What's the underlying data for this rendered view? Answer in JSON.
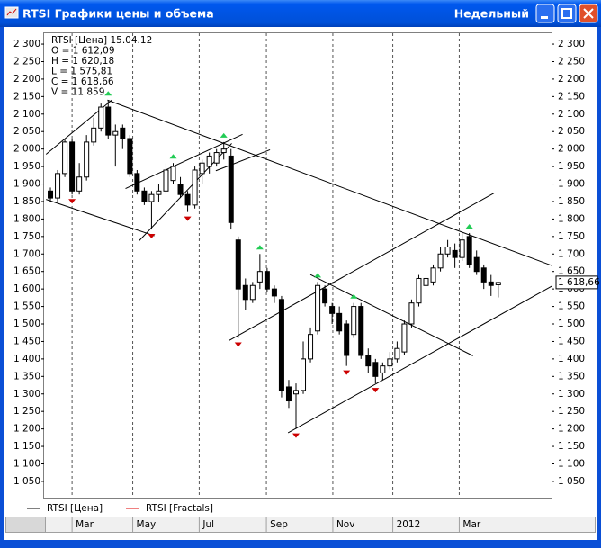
{
  "window": {
    "title": "RTSI Графики цены и объема",
    "period": "Недельный"
  },
  "chart_data": {
    "type": "candlestick",
    "info": [
      "RTSI [Цена] 15.04.12",
      "O = 1 612,09",
      "H = 1 620,18",
      "L = 1 575,81",
      "C = 1 618,66",
      "V = 11 859"
    ],
    "x": [
      0,
      1,
      2,
      3,
      4,
      5,
      6,
      7,
      8,
      9,
      10,
      11,
      12,
      13,
      14,
      15,
      16,
      17,
      18,
      19,
      20,
      21,
      22,
      23,
      24,
      25,
      26,
      27,
      28,
      29,
      30,
      31,
      32,
      33,
      34,
      35,
      36,
      37,
      38,
      39,
      40,
      41,
      42,
      43,
      44,
      45,
      46,
      47,
      48,
      49,
      50,
      51,
      52,
      53,
      54,
      55,
      56,
      57,
      58,
      59,
      60,
      61,
      62
    ],
    "series": [
      {
        "name": "RTSI [Цена]",
        "color": "#000000",
        "up_fill": "#ffffff",
        "down_fill": "#000000",
        "open": [
          1880,
          1860,
          1930,
          2020,
          1880,
          1920,
          2020,
          2060,
          2120,
          2040,
          2060,
          2030,
          1930,
          1880,
          1850,
          1870,
          1880,
          1910,
          1900,
          1870,
          1840,
          1930,
          1950,
          1960,
          1990,
          1980,
          1740,
          1610,
          1570,
          1620,
          1650,
          1600,
          1570,
          1320,
          1300,
          1310,
          1400,
          1480,
          1600,
          1550,
          1530,
          1500,
          1470,
          1550,
          1410,
          1390,
          1360,
          1380,
          1400,
          1420,
          1500,
          1560,
          1610,
          1620,
          1660,
          1700,
          1710,
          1690,
          1750,
          1690,
          1660,
          1620,
          1612.09
        ],
        "high": [
          1890,
          1940,
          2030,
          2030,
          1960,
          2040,
          2090,
          2130,
          2140,
          2070,
          2070,
          2040,
          1940,
          1890,
          1880,
          1900,
          1960,
          1960,
          1920,
          1880,
          1950,
          1970,
          1990,
          2000,
          2020,
          2000,
          1750,
          1630,
          1620,
          1700,
          1660,
          1610,
          1580,
          1340,
          1330,
          1450,
          1490,
          1620,
          1610,
          1560,
          1550,
          1510,
          1560,
          1560,
          1430,
          1400,
          1390,
          1420,
          1450,
          1510,
          1570,
          1640,
          1640,
          1670,
          1720,
          1740,
          1730,
          1760,
          1760,
          1710,
          1670,
          1640,
          1620.18
        ],
        "low": [
          1850,
          1850,
          1920,
          1870,
          1870,
          1910,
          2010,
          2050,
          2030,
          1950,
          2000,
          1920,
          1870,
          1840,
          1770,
          1850,
          1870,
          1900,
          1860,
          1820,
          1830,
          1900,
          1930,
          1950,
          1970,
          1770,
          1460,
          1540,
          1560,
          1600,
          1590,
          1560,
          1290,
          1260,
          1200,
          1300,
          1390,
          1470,
          1550,
          1500,
          1470,
          1380,
          1460,
          1400,
          1360,
          1330,
          1340,
          1370,
          1390,
          1410,
          1490,
          1550,
          1600,
          1610,
          1650,
          1690,
          1660,
          1680,
          1660,
          1640,
          1600,
          1580,
          1575.81
        ],
        "close": [
          1860,
          1930,
          2020,
          1880,
          1920,
          2020,
          2060,
          2120,
          2040,
          2050,
          2030,
          1930,
          1880,
          1850,
          1870,
          1880,
          1940,
          1950,
          1870,
          1840,
          1940,
          1960,
          1980,
          1990,
          2000,
          1790,
          1600,
          1570,
          1610,
          1650,
          1600,
          1580,
          1310,
          1280,
          1310,
          1400,
          1470,
          1610,
          1560,
          1530,
          1480,
          1410,
          1550,
          1410,
          1380,
          1350,
          1380,
          1400,
          1430,
          1500,
          1560,
          1630,
          1630,
          1660,
          1700,
          1720,
          1690,
          1740,
          1670,
          1650,
          1620,
          1610,
          1618.66
        ]
      },
      {
        "name": "RTSI [Fractals]",
        "color": "#e00000",
        "up": {
          "color": "#22cc55",
          "x": [
            8,
            17,
            24,
            29,
            37,
            42,
            58
          ],
          "y": [
            2140,
            1960,
            2020,
            1700,
            1620,
            1560,
            1760
          ]
        },
        "down": {
          "color": "#cc0000",
          "x": [
            3,
            14,
            19,
            26,
            34,
            41,
            45
          ],
          "y": [
            1870,
            1770,
            1820,
            1460,
            1200,
            1380,
            1330
          ]
        }
      }
    ],
    "trendlines": [
      {
        "x": [
          -0.6,
          14.4
        ],
        "y": [
          1856,
          1752
        ]
      },
      {
        "x": [
          -0.6,
          8.5
        ],
        "y": [
          1985,
          2140
        ]
      },
      {
        "x": [
          7.9,
          69.4
        ],
        "y": [
          2140,
          1667
        ]
      },
      {
        "x": [
          10.4,
          26.6
        ],
        "y": [
          1887,
          2042
        ]
      },
      {
        "x": [
          12.25,
          25.1
        ],
        "y": [
          1737,
          2016
        ]
      },
      {
        "x": [
          22.9,
          30.4
        ],
        "y": [
          1938,
          1998
        ]
      },
      {
        "x": [
          24.75,
          61.4
        ],
        "y": [
          1453,
          1874
        ]
      },
      {
        "x": [
          36,
          58.5
        ],
        "y": [
          1641,
          1409
        ]
      },
      {
        "x": [
          32.9,
          69.4
        ],
        "y": [
          1189,
          1608
        ]
      }
    ],
    "last_price": {
      "value": 1618.66,
      "label": "1 618,66"
    },
    "xlim": [
      -0.875,
      69.375
    ],
    "xticks": [
      {
        "value": 3,
        "label": "Mar"
      },
      {
        "value": 11.4,
        "label": "May"
      },
      {
        "value": 20.6,
        "label": "Jul"
      },
      {
        "value": 29.9,
        "label": "Sep"
      },
      {
        "value": 39.1,
        "label": "Nov"
      },
      {
        "value": 47.4,
        "label": "2012"
      },
      {
        "value": 56.6,
        "label": "Mar"
      }
    ],
    "ylim": [
      1003.5,
      2331
    ],
    "yticks": [
      {
        "value": 1050,
        "label": "1 050"
      },
      {
        "value": 1100,
        "label": "1 100"
      },
      {
        "value": 1150,
        "label": "1 150"
      },
      {
        "value": 1200,
        "label": "1 200"
      },
      {
        "value": 1250,
        "label": "1 250"
      },
      {
        "value": 1300,
        "label": "1 300"
      },
      {
        "value": 1350,
        "label": "1 350"
      },
      {
        "value": 1400,
        "label": "1 400"
      },
      {
        "value": 1450,
        "label": "1 450"
      },
      {
        "value": 1500,
        "label": "1 500"
      },
      {
        "value": 1550,
        "label": "1 550"
      },
      {
        "value": 1600,
        "label": "1 600"
      },
      {
        "value": 1650,
        "label": "1 650"
      },
      {
        "value": 1700,
        "label": "1 700"
      },
      {
        "value": 1750,
        "label": "1 750"
      },
      {
        "value": 1800,
        "label": "1 800"
      },
      {
        "value": 1850,
        "label": "1 850"
      },
      {
        "value": 1900,
        "label": "1 900"
      },
      {
        "value": 1950,
        "label": "1 950"
      },
      {
        "value": 2000,
        "label": "2 000"
      },
      {
        "value": 2050,
        "label": "2 050"
      },
      {
        "value": 2100,
        "label": "2 100"
      },
      {
        "value": 2150,
        "label": "2 150"
      },
      {
        "value": 2200,
        "label": "2 200"
      },
      {
        "value": 2250,
        "label": "2 250"
      },
      {
        "value": 2300,
        "label": "2 300"
      }
    ],
    "grid": true
  }
}
